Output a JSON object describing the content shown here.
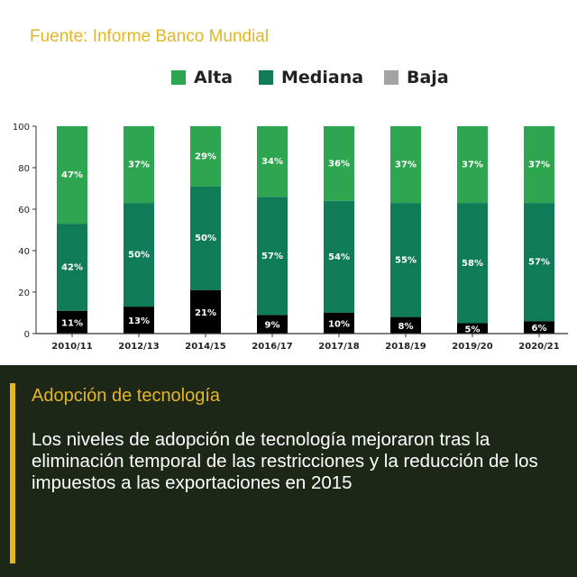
{
  "source_note": "Fuente: Informe Banco Mundial",
  "legend": [
    {
      "label": "Alta",
      "color": "#2ea54f"
    },
    {
      "label": "Mediana",
      "color": "#0f7b57"
    },
    {
      "label": "Baja",
      "color": "#a3a3a3"
    }
  ],
  "chart_data": {
    "type": "bar",
    "stacked": true,
    "categories": [
      "2010/11",
      "2012/13",
      "2014/15",
      "2016/17",
      "2017/18",
      "2018/19",
      "2019/20",
      "2020/21"
    ],
    "series": [
      {
        "name": "Baja",
        "color": "#000000",
        "values": [
          11,
          13,
          21,
          9,
          10,
          8,
          5,
          6
        ]
      },
      {
        "name": "Mediana",
        "color": "#0f7b57",
        "values": [
          42,
          50,
          50,
          57,
          54,
          55,
          58,
          57
        ]
      },
      {
        "name": "Alta",
        "color": "#2ea54f",
        "values": [
          47,
          37,
          29,
          34,
          36,
          37,
          37,
          37
        ]
      }
    ],
    "data_labels": {
      "Baja": [
        "11%",
        "13%",
        "21%",
        "9%",
        "10%",
        "8%",
        "5%",
        "6%"
      ],
      "Mediana": [
        "42%",
        "50%",
        "50%",
        "57%",
        "54%",
        "55%",
        "58%",
        "57%"
      ],
      "Alta": [
        "47%",
        "37%",
        "29%",
        "34%",
        "36%",
        "37%",
        "37%",
        "37%"
      ]
    },
    "yticks": [
      0,
      20,
      40,
      60,
      80,
      100
    ],
    "ylim": [
      0,
      100
    ],
    "grid": false,
    "legend_position": "top"
  },
  "panel": {
    "title": "Adopción de tecnología",
    "body": "Los niveles de adopción de tecnología mejoraron tras la eliminación temporal de las restricciones y la reducción de los impuestos a las exportaciones en 2015"
  }
}
